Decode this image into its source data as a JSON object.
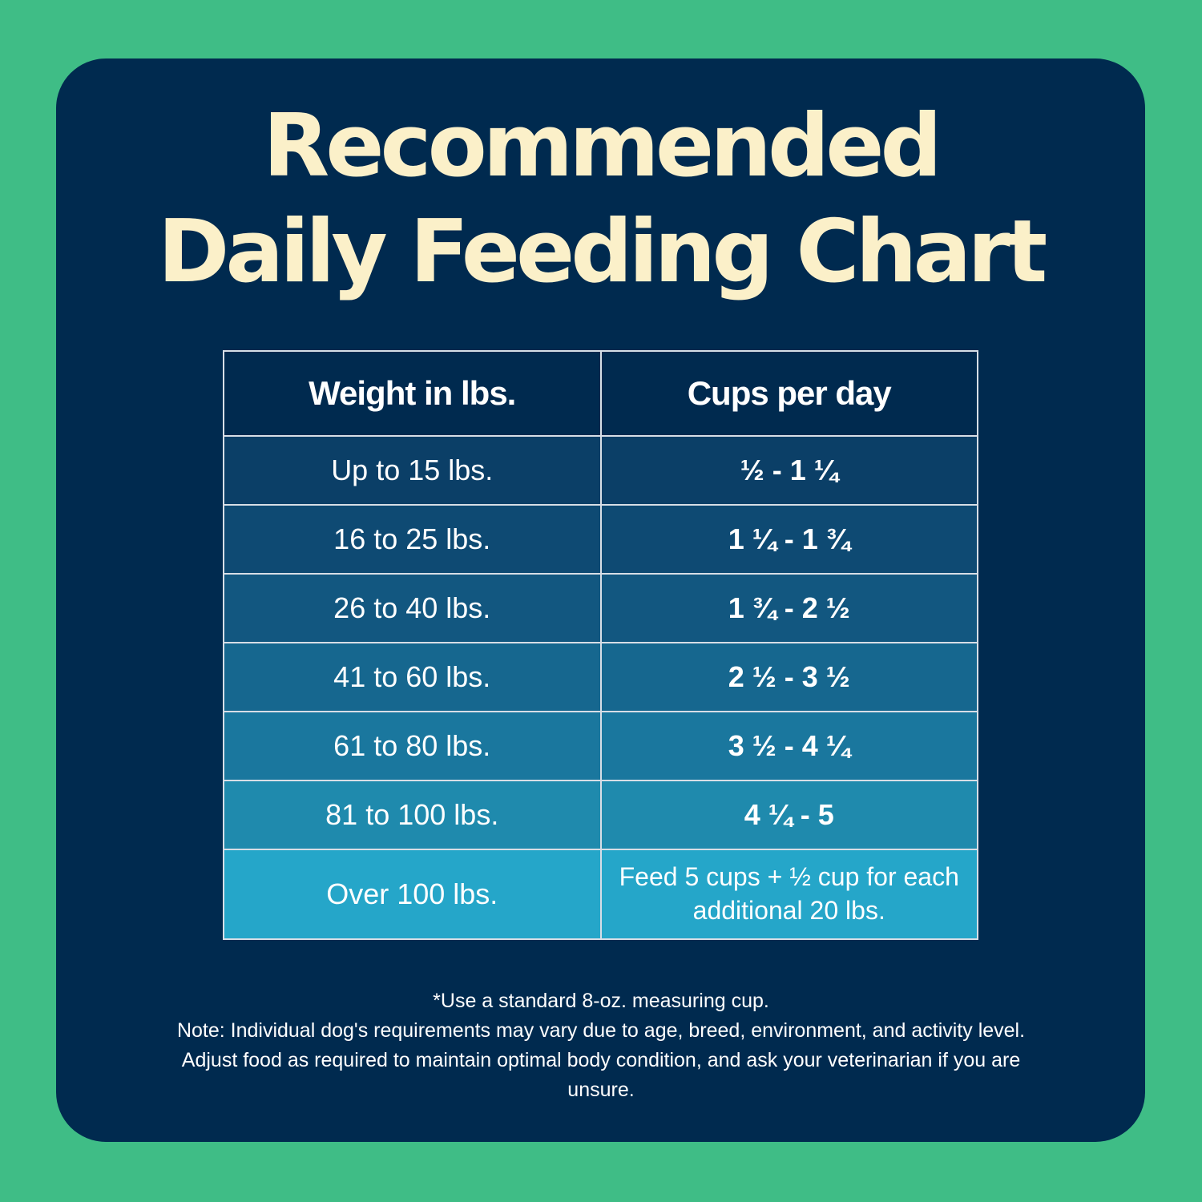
{
  "title": {
    "line1": "Recommended",
    "line2": "Daily Feeding Chart"
  },
  "table": {
    "headers": [
      "Weight in lbs.",
      "Cups per day"
    ],
    "rows": [
      {
        "weight": "Up to 15 lbs.",
        "cups": "½ - 1 ¼",
        "bg": "#0b3f67"
      },
      {
        "weight": "16 to 25 lbs.",
        "cups": "1 ¼ - 1 ¾",
        "bg": "#0e4a73"
      },
      {
        "weight": "26 to 40 lbs.",
        "cups": "1 ¾ - 2 ½",
        "bg": "#125780"
      },
      {
        "weight": "41 to 60 lbs.",
        "cups": "2 ½ - 3 ½",
        "bg": "#16678f"
      },
      {
        "weight": "61 to 80 lbs.",
        "cups": "3 ½ - 4 ¼",
        "bg": "#1a779e"
      },
      {
        "weight": "81 to 100 lbs.",
        "cups": "4 ¼ - 5",
        "bg": "#1f8aad"
      },
      {
        "weight": "Over 100 lbs.",
        "cups": "Feed 5 cups + ½ cup for each additional 20 lbs.",
        "bg": "#25a6c9"
      }
    ]
  },
  "notes": {
    "line1": "*Use a standard 8-oz. measuring cup.",
    "line2": "Note: Individual dog's requirements may vary due to age, breed, environment, and activity level. Adjust food as required to maintain optimal body condition, and ask your veterinarian if you are unsure."
  },
  "colors": {
    "background": "#3fbd86",
    "card": "#002a4f",
    "title": "#fbf0c9"
  }
}
